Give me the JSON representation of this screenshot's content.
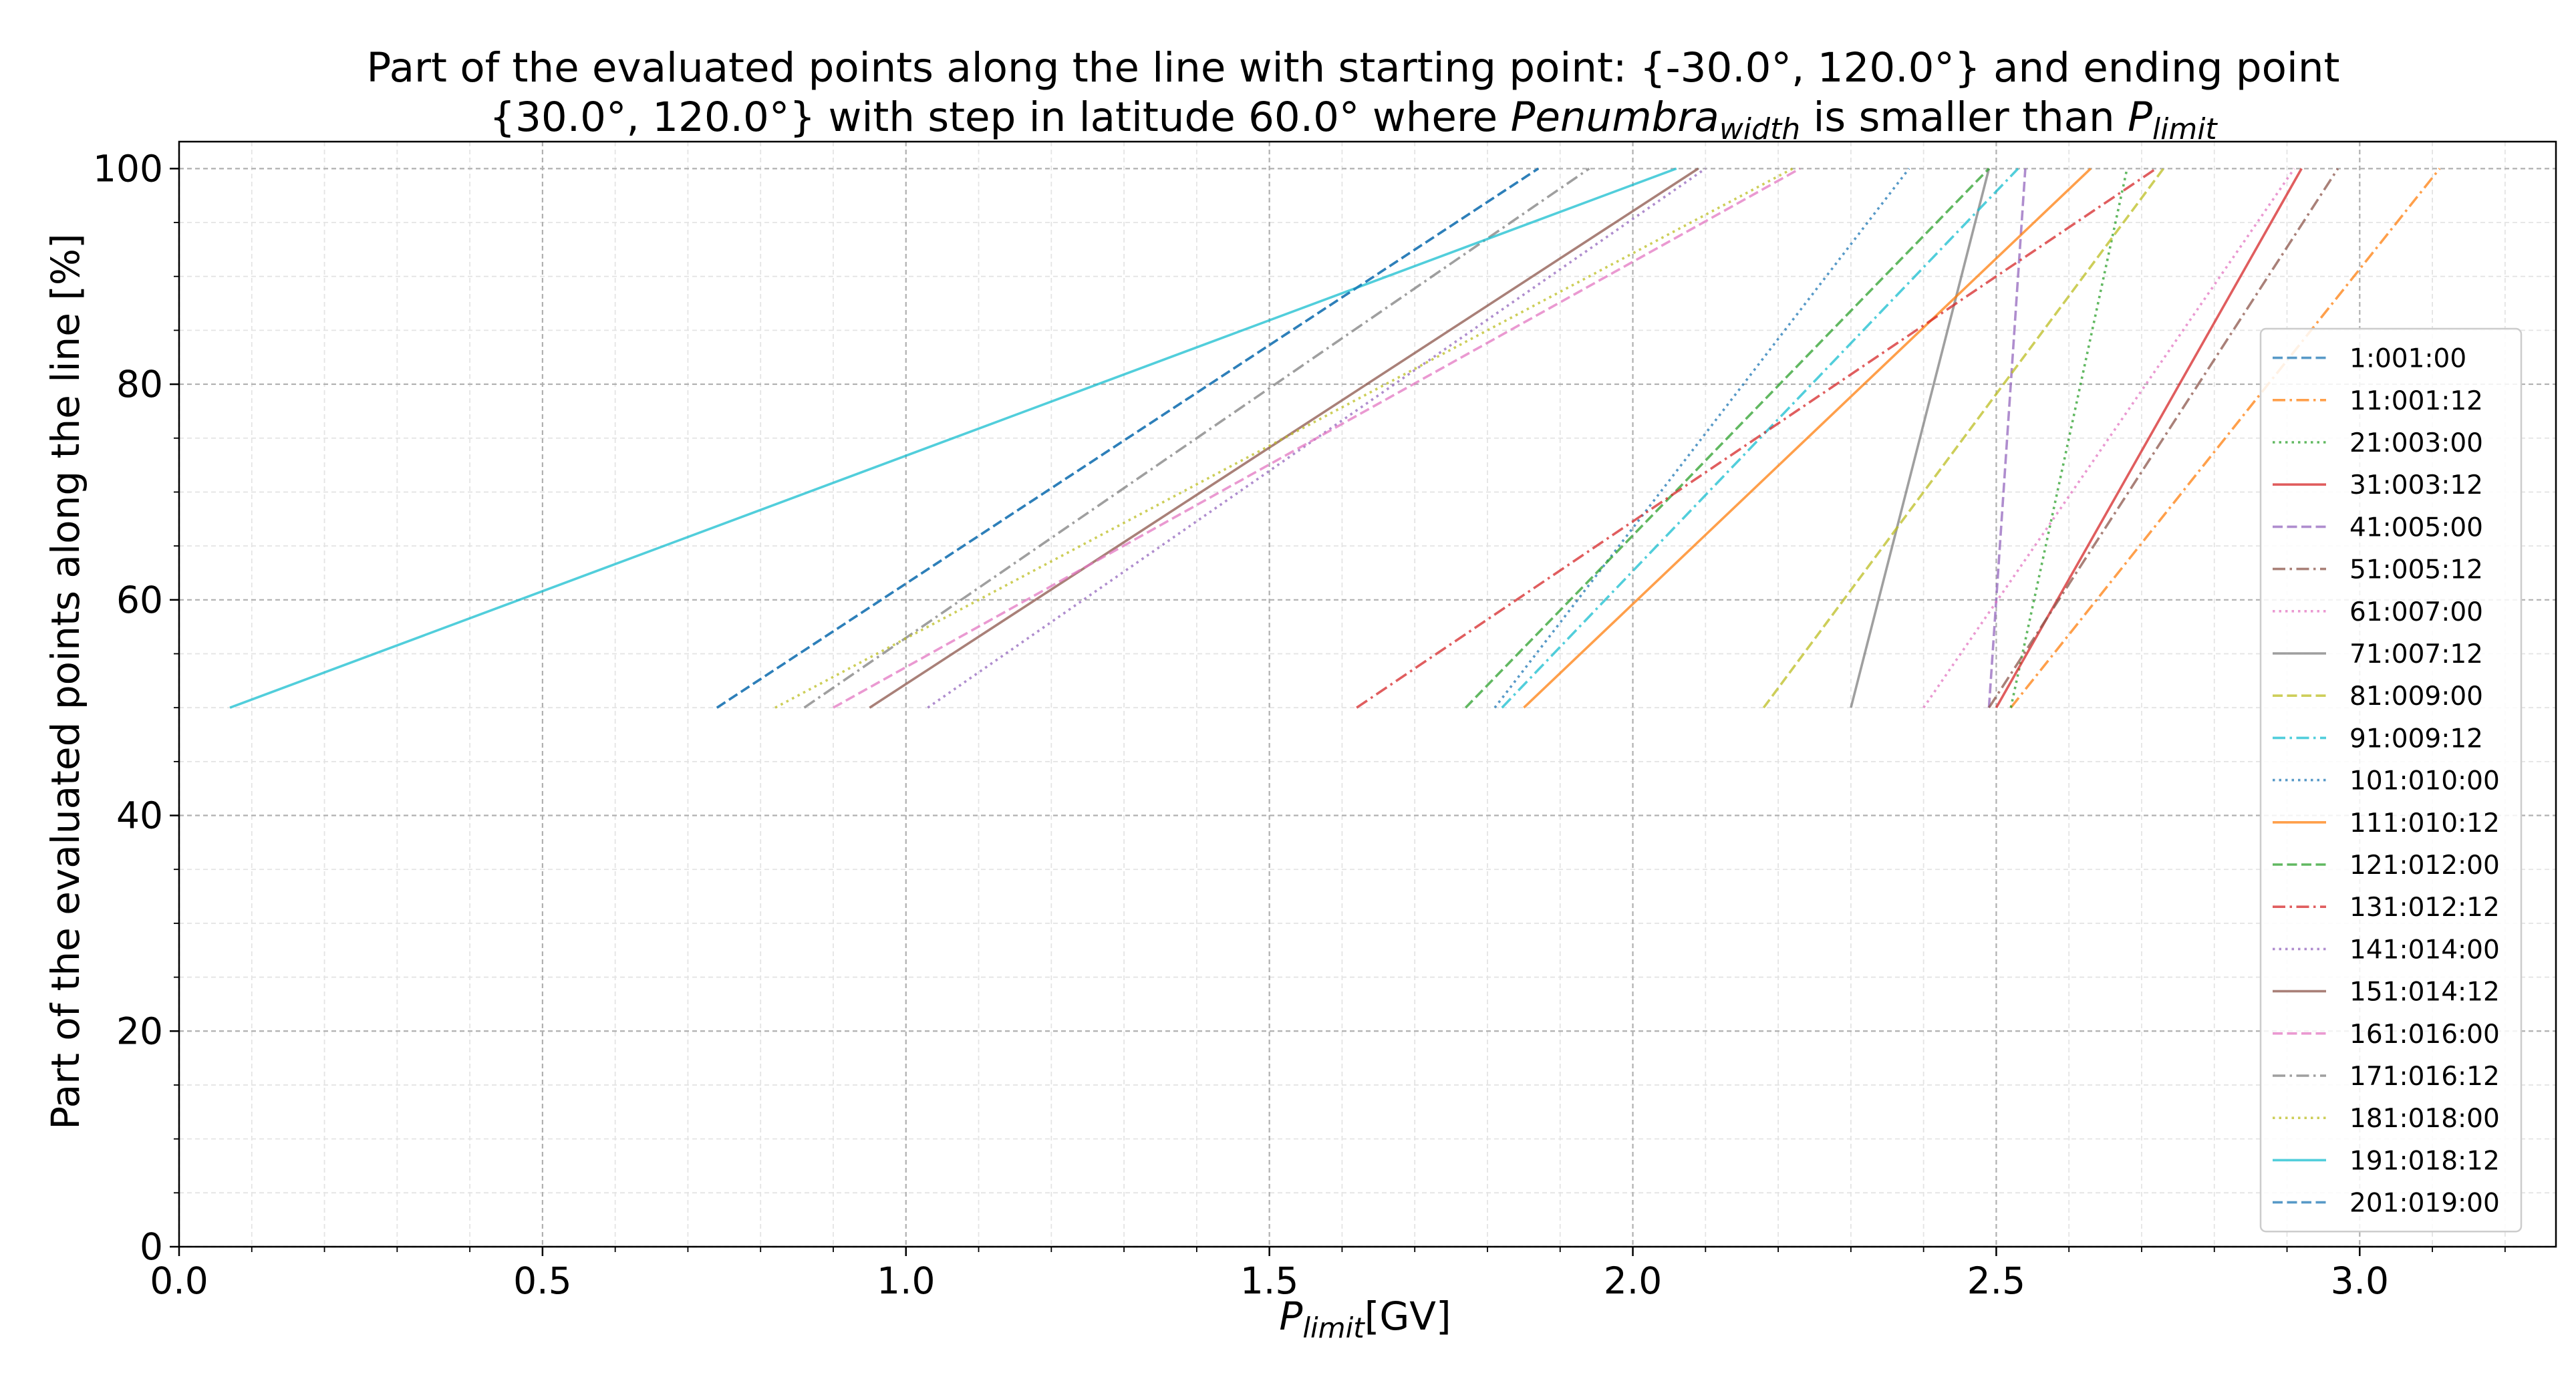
{
  "chart_data": {
    "type": "line",
    "title_lines": [
      "Part of the evaluated points along the line with starting point: {-30.0°, 120.0°} and ending point",
      "{30.0°, 120.0°} with step in latitude 60.0° where Penumbra_width is smaller than P_limit"
    ],
    "xlabel": "P_limit[GV]",
    "ylabel": "Part of the evaluated points along the line  [%]",
    "xlim": [
      0.0,
      3.27
    ],
    "ylim": [
      0,
      102.5
    ],
    "xticks": [
      "0.0",
      "0.5",
      "1.0",
      "1.5",
      "2.0",
      "2.5",
      "3.0"
    ],
    "yticks": [
      "0",
      "20",
      "40",
      "60",
      "80",
      "100"
    ],
    "grid": true,
    "legend_position": "right",
    "series": [
      {
        "name": "1:001:00",
        "color": "#1f77b4",
        "dash": "dashed",
        "x": [
          0.74,
          1.87
        ],
        "y": [
          50,
          100
        ]
      },
      {
        "name": "11:001:12",
        "color": "#ff7f0e",
        "dash": "dashdot",
        "x": [
          2.52,
          3.11
        ],
        "y": [
          50,
          100
        ]
      },
      {
        "name": "21:003:00",
        "color": "#2ca02c",
        "dash": "dotted",
        "x": [
          2.52,
          2.68
        ],
        "y": [
          50,
          100
        ]
      },
      {
        "name": "31:003:12",
        "color": "#d62728",
        "dash": "solid",
        "x": [
          2.5,
          2.92
        ],
        "y": [
          50,
          100
        ]
      },
      {
        "name": "41:005:00",
        "color": "#9467bd",
        "dash": "dashed",
        "x": [
          2.49,
          2.54
        ],
        "y": [
          50,
          100
        ]
      },
      {
        "name": "51:005:12",
        "color": "#8c564b",
        "dash": "dashdot",
        "x": [
          2.49,
          2.97
        ],
        "y": [
          50,
          100
        ]
      },
      {
        "name": "61:007:00",
        "color": "#e377c2",
        "dash": "dotted",
        "x": [
          2.4,
          2.91
        ],
        "y": [
          50,
          100
        ]
      },
      {
        "name": "71:007:12",
        "color": "#7f7f7f",
        "dash": "solid",
        "x": [
          2.3,
          2.49
        ],
        "y": [
          50,
          100
        ]
      },
      {
        "name": "81:009:00",
        "color": "#bcbd22",
        "dash": "dashed",
        "x": [
          2.18,
          2.73
        ],
        "y": [
          50,
          100
        ]
      },
      {
        "name": "91:009:12",
        "color": "#17becf",
        "dash": "dashdot",
        "x": [
          1.82,
          2.53
        ],
        "y": [
          50,
          100
        ]
      },
      {
        "name": "101:010:00",
        "color": "#1f77b4",
        "dash": "dotted",
        "x": [
          1.81,
          2.38
        ],
        "y": [
          50,
          100
        ]
      },
      {
        "name": "111:010:12",
        "color": "#ff7f0e",
        "dash": "solid",
        "x": [
          1.85,
          2.63
        ],
        "y": [
          50,
          100
        ]
      },
      {
        "name": "121:012:00",
        "color": "#2ca02c",
        "dash": "dashed",
        "x": [
          1.77,
          2.49
        ],
        "y": [
          50,
          100
        ]
      },
      {
        "name": "131:012:12",
        "color": "#d62728",
        "dash": "dashdot",
        "x": [
          1.62,
          2.72
        ],
        "y": [
          50,
          100
        ]
      },
      {
        "name": "141:014:00",
        "color": "#9467bd",
        "dash": "dotted",
        "x": [
          1.03,
          2.1
        ],
        "y": [
          50,
          100
        ]
      },
      {
        "name": "151:014:12",
        "color": "#8c564b",
        "dash": "solid",
        "x": [
          0.95,
          2.09
        ],
        "y": [
          50,
          100
        ]
      },
      {
        "name": "161:016:00",
        "color": "#e377c2",
        "dash": "dashed",
        "x": [
          0.9,
          2.23
        ],
        "y": [
          50,
          100
        ]
      },
      {
        "name": "171:016:12",
        "color": "#7f7f7f",
        "dash": "dashdot",
        "x": [
          0.86,
          1.94
        ],
        "y": [
          50,
          100
        ]
      },
      {
        "name": "181:018:00",
        "color": "#bcbd22",
        "dash": "dotted",
        "x": [
          0.82,
          2.22
        ],
        "y": [
          50,
          100
        ]
      },
      {
        "name": "191:018:12",
        "color": "#17becf",
        "dash": "solid",
        "x": [
          0.07,
          2.06
        ],
        "y": [
          50,
          100
        ]
      },
      {
        "name": "201:019:00",
        "color": "#1f77b4",
        "dash": "dashed",
        "x": [
          0.74,
          1.87
        ],
        "y": [
          50,
          100
        ]
      }
    ]
  }
}
